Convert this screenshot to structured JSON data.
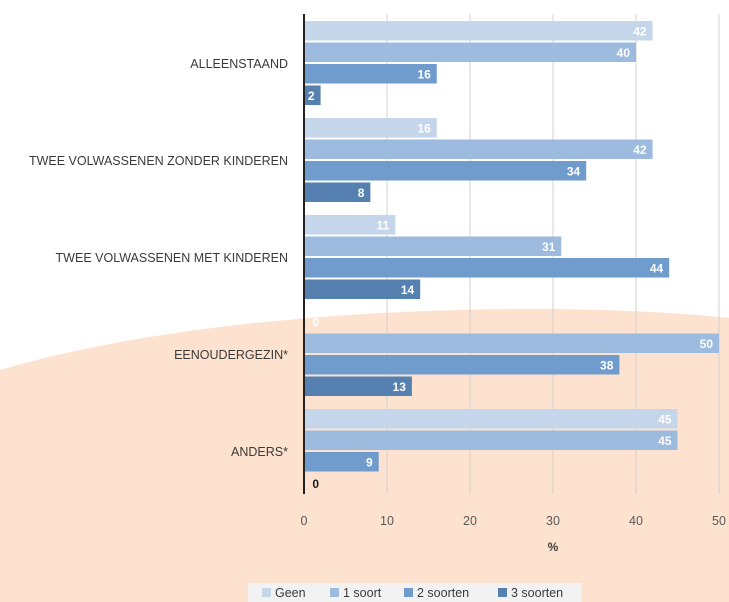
{
  "chart_data": {
    "type": "bar",
    "orientation": "horizontal",
    "categories": [
      "ALLEENSTAAND",
      "TWEE VOLWASSENEN ZONDER KINDEREN",
      "TWEE VOLWASSENEN MET KINDEREN",
      "EENOUDERGEZIN*",
      "ANDERS*"
    ],
    "series": [
      {
        "name": "Geen",
        "values": [
          42,
          16,
          11,
          0,
          45
        ],
        "color": "#c5d6ea"
      },
      {
        "name": "1 soort",
        "values": [
          40,
          42,
          31,
          50,
          45
        ],
        "color": "#9dbadf"
      },
      {
        "name": "2 soorten",
        "values": [
          16,
          34,
          44,
          38,
          9
        ],
        "color": "#6f9bcd"
      },
      {
        "name": "3 soorten",
        "values": [
          2,
          8,
          14,
          13,
          0
        ],
        "color": "#5580b0"
      }
    ],
    "xlabel": "%",
    "xlim": [
      0,
      50
    ],
    "xticks": [
      0,
      10,
      20,
      30,
      40,
      50
    ],
    "grid": true,
    "legend_position": "bottom",
    "background_shape_color": "#fde3cf"
  }
}
